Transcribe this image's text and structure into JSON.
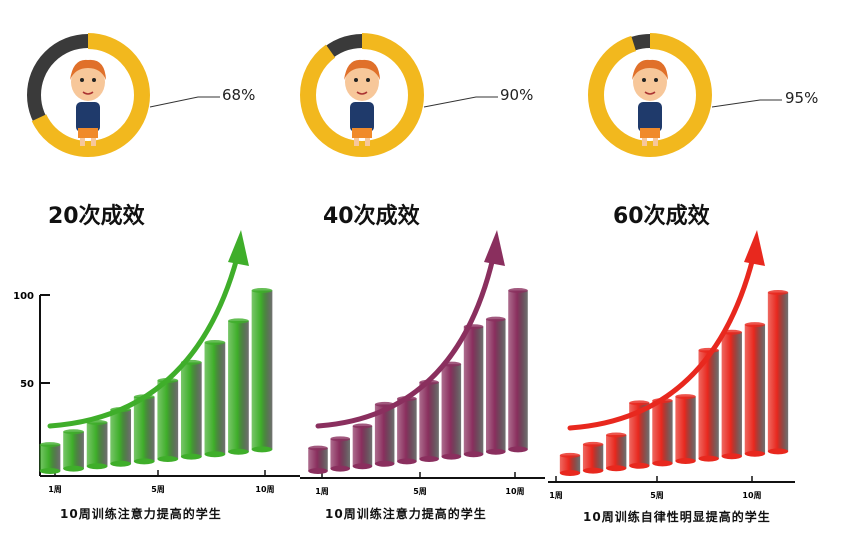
{
  "progress": [
    {
      "heading": "20次成效",
      "percent_label": "68%",
      "percent": 68
    },
    {
      "heading": "40次成效",
      "percent_label": "90%",
      "percent": 90
    },
    {
      "heading": "60次成效",
      "percent_label": "95%",
      "percent": 95
    }
  ],
  "colors": {
    "ring": "#f2b81e",
    "ring_rest": "#3a3a3a",
    "shirt": "#1f3a6b",
    "hair": "#e0702a",
    "skin": "#f7c79a",
    "shorts": "#f08a2a"
  },
  "chart_data": [
    {
      "type": "bar",
      "title": "10周训练注意力提高的学生",
      "y_ticks": [
        "100",
        "50"
      ],
      "x_ticks": [
        "1周",
        "5周",
        "10周"
      ],
      "ylim": [
        0,
        100
      ],
      "categories": [
        1,
        2,
        3,
        4,
        5,
        6,
        7,
        8,
        9,
        10
      ],
      "values": [
        15,
        22,
        27,
        34,
        41,
        50,
        60,
        71,
        83,
        100
      ],
      "color": "#3fae2a",
      "trend_arrow": true
    },
    {
      "type": "bar",
      "title": "10周训练注意力提高的学生",
      "x_ticks": [
        "1周",
        "5周",
        "10周"
      ],
      "ylim": [
        0,
        100
      ],
      "categories": [
        1,
        2,
        3,
        4,
        5,
        6,
        7,
        8,
        9,
        10
      ],
      "values": [
        13,
        18,
        25,
        37,
        40,
        49,
        59,
        80,
        84,
        100
      ],
      "color": "#8a2f5e",
      "trend_arrow": true
    },
    {
      "type": "bar",
      "title": "10周训练自律性明显提高的学生",
      "x_ticks": [
        "1周",
        "5周",
        "10周"
      ],
      "ylim": [
        0,
        100
      ],
      "categories": [
        1,
        2,
        3,
        4,
        5,
        6,
        7,
        8,
        9,
        10
      ],
      "values": [
        10,
        16,
        21,
        39,
        40,
        42,
        68,
        78,
        82,
        100
      ],
      "color": "#e8281e",
      "trend_arrow": true
    }
  ]
}
